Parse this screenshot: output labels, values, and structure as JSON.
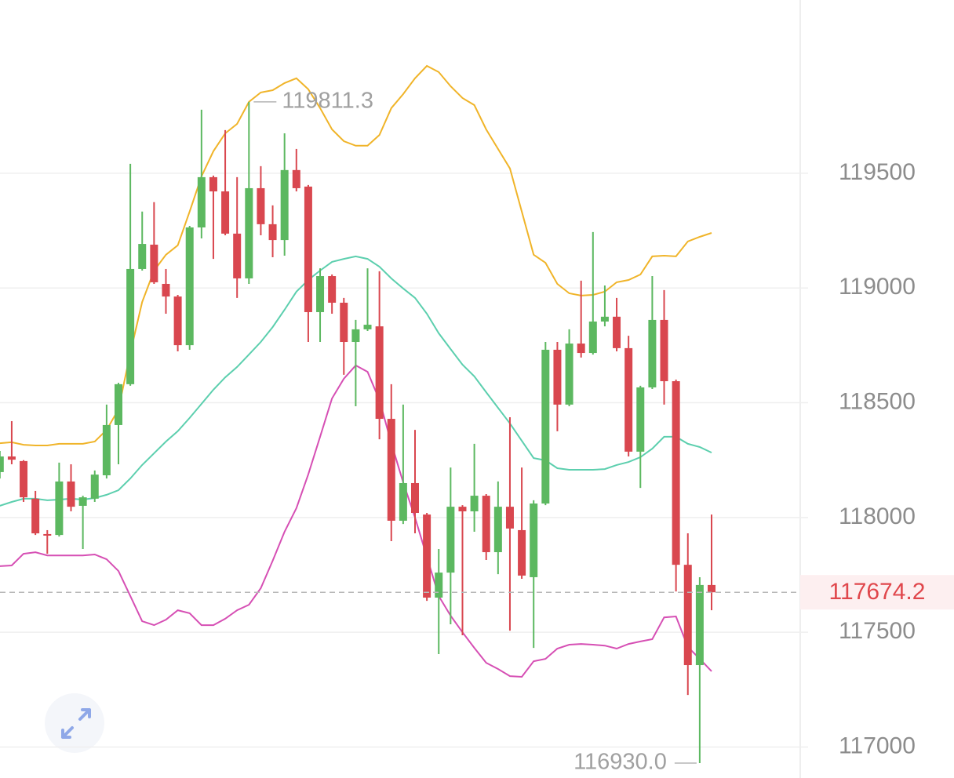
{
  "chart_data": {
    "type": "candlestick",
    "up_color": "#5cb860",
    "down_color": "#d9474f",
    "ylim": [
      116865,
      120255
    ],
    "yticks": [
      117000,
      117500,
      118000,
      118500,
      119000,
      119500
    ],
    "grid": true,
    "open": [
      118198,
      118266,
      118246,
      118082,
      117928,
      117924,
      118157,
      118051,
      118082,
      118184,
      118403,
      118581,
      119083,
      119189,
      119018,
      118963,
      118751,
      119264,
      119483,
      119421,
      119237,
      119042,
      119435,
      119278,
      119209,
      119514,
      119442,
      118895,
      119052,
      118936,
      118765,
      118820,
      118833,
      118430,
      117986,
      118150,
      118013,
      117651,
      117760,
      118047,
      118027,
      118095,
      117849,
      118047,
      117945,
      117740,
      118061,
      118731,
      118492,
      118758,
      118717,
      118854,
      118875,
      118738,
      118287,
      118567,
      118861,
      118594,
      117794,
      117357,
      117706
    ],
    "high": [
      118290,
      118420,
      118250,
      118116,
      117945,
      118239,
      118232,
      118095,
      118205,
      118492,
      118587,
      119541,
      119333,
      119374,
      119083,
      118970,
      119271,
      119777,
      119490,
      119688,
      119483,
      119811.3,
      119531,
      119360,
      119674,
      119606,
      119449,
      119086,
      119059,
      118957,
      118861,
      119086,
      119073,
      118581,
      118492,
      118382,
      118020,
      117863,
      118218,
      118054,
      118321,
      118102,
      118157,
      118437,
      118218,
      118075,
      118765,
      118765,
      118820,
      119032,
      119244,
      119011,
      118957,
      118792,
      118574,
      119052,
      118991,
      118601,
      117931,
      117740,
      118013
    ],
    "low": [
      118170,
      118232,
      118068,
      117924,
      117842,
      117917,
      118027,
      117863,
      118068,
      118170,
      118232,
      118574,
      119076,
      119018,
      118888,
      118724,
      118731,
      119216,
      119127,
      119230,
      118957,
      119018,
      119230,
      119134,
      119141,
      119421,
      118765,
      118765,
      118888,
      118622,
      118485,
      118813,
      118341,
      117897,
      117972,
      117931,
      117637,
      117405,
      117535,
      117487,
      117938,
      117815,
      117753,
      117507,
      117733,
      117432,
      118054,
      118376,
      118485,
      118697,
      118710,
      118833,
      118724,
      118266,
      118129,
      118560,
      118492,
      117678,
      117227,
      116930,
      117596
    ],
    "close": [
      118266,
      118252,
      118088,
      117931,
      117921,
      118157,
      118047,
      118088,
      118187,
      118403,
      118581,
      119083,
      119192,
      119025,
      118963,
      118751,
      119264,
      119483,
      119421,
      119237,
      119042,
      119435,
      119278,
      119209,
      119514,
      119435,
      118895,
      119052,
      118936,
      118765,
      118820,
      118840,
      118430,
      117986,
      118150,
      118020,
      117651,
      117760,
      118047,
      118027,
      118095,
      117849,
      118047,
      117952,
      117747,
      118061,
      118731,
      118492,
      118758,
      118717,
      118854,
      118875,
      118738,
      118287,
      118567,
      118861,
      118594,
      117794,
      117357,
      117706,
      117674.2
    ],
    "overlays": [
      {
        "color": "#f0b429",
        "values": [
          118324,
          118328,
          118317,
          118314,
          118314,
          118321,
          118321,
          118321,
          118331,
          118382,
          118471,
          118717,
          118939,
          119076,
          119145,
          119186,
          119333,
          119486,
          119596,
          119674,
          119715,
          119811,
          119852,
          119862,
          119893,
          119914,
          119866,
          119784,
          119691,
          119640,
          119620,
          119620,
          119667,
          119784,
          119845,
          119914,
          119968,
          119941,
          119879,
          119828,
          119797,
          119691,
          119606,
          119521,
          119333,
          119145,
          119110,
          119018,
          118977,
          118967,
          118970,
          118984,
          119025,
          119035,
          119059,
          119138,
          119141,
          119138,
          119203,
          119223,
          119240
        ]
      },
      {
        "color": "#5ccfae",
        "values": [
          118051,
          118068,
          118082,
          118082,
          118075,
          118078,
          118082,
          118078,
          118085,
          118099,
          118119,
          118170,
          118229,
          118280,
          118331,
          118376,
          118434,
          118495,
          118557,
          118611,
          118656,
          118710,
          118765,
          118830,
          118905,
          118984,
          119035,
          119076,
          119114,
          119127,
          119138,
          119127,
          119093,
          119042,
          118998,
          118957,
          118888,
          118803,
          118734,
          118666,
          118615,
          118546,
          118478,
          118410,
          118334,
          118259,
          118249,
          118215,
          118208,
          118208,
          118208,
          118211,
          118229,
          118242,
          118263,
          118300,
          118352,
          118352,
          118321,
          118307,
          118283
        ]
      },
      {
        "color": "#d64fb4",
        "values": [
          117788,
          117791,
          117842,
          117849,
          117835,
          117835,
          117835,
          117835,
          117839,
          117818,
          117767,
          117658,
          117548,
          117531,
          117555,
          117596,
          117583,
          117531,
          117531,
          117559,
          117596,
          117620,
          117692,
          117812,
          117938,
          118041,
          118188,
          118352,
          118519,
          118605,
          118663,
          118635,
          118512,
          118324,
          118153,
          118000,
          117829,
          117658,
          117572,
          117500,
          117432,
          117367,
          117340,
          117309,
          117306,
          117374,
          117384,
          117429,
          117446,
          117449,
          117446,
          117442,
          117429,
          117449,
          117460,
          117470,
          117565,
          117569,
          117436,
          117384,
          117330
        ]
      }
    ],
    "high_label": "119811.3",
    "low_label": "116930.0",
    "last_price": 117674.2
  }
}
